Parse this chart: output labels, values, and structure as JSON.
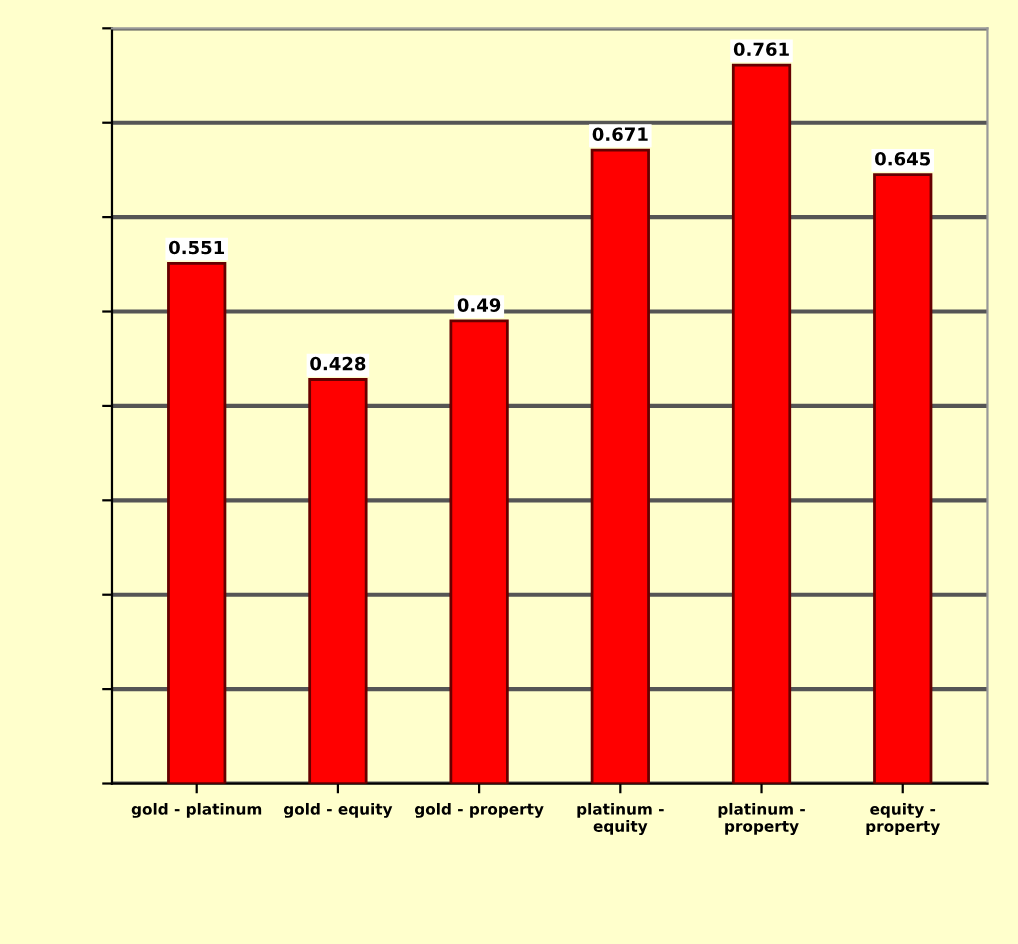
{
  "chart_data": {
    "type": "bar",
    "categories": [
      "gold - platinum",
      "gold - equity",
      "gold - property",
      "platinum - equity",
      "platinum - property",
      "equity - property"
    ],
    "values": [
      0.551,
      0.428,
      0.49,
      0.671,
      0.761,
      0.645
    ],
    "color": "#ff0000",
    "data_labels": true,
    "ylim": [
      0,
      0.8
    ],
    "yticks": [
      {
        "value": 0,
        "label": null
      },
      {
        "value": 0.1,
        "label": null
      },
      {
        "value": 0.2,
        "label": null
      },
      {
        "value": 0.3,
        "label": null
      },
      {
        "value": 0.4,
        "label": null
      },
      {
        "value": 0.5,
        "label": null
      },
      {
        "value": 0.6,
        "label": null
      },
      {
        "value": 0.7,
        "label": null
      },
      {
        "value": 0.8,
        "label": null
      }
    ],
    "tick_labels": "x",
    "grid": "y"
  }
}
